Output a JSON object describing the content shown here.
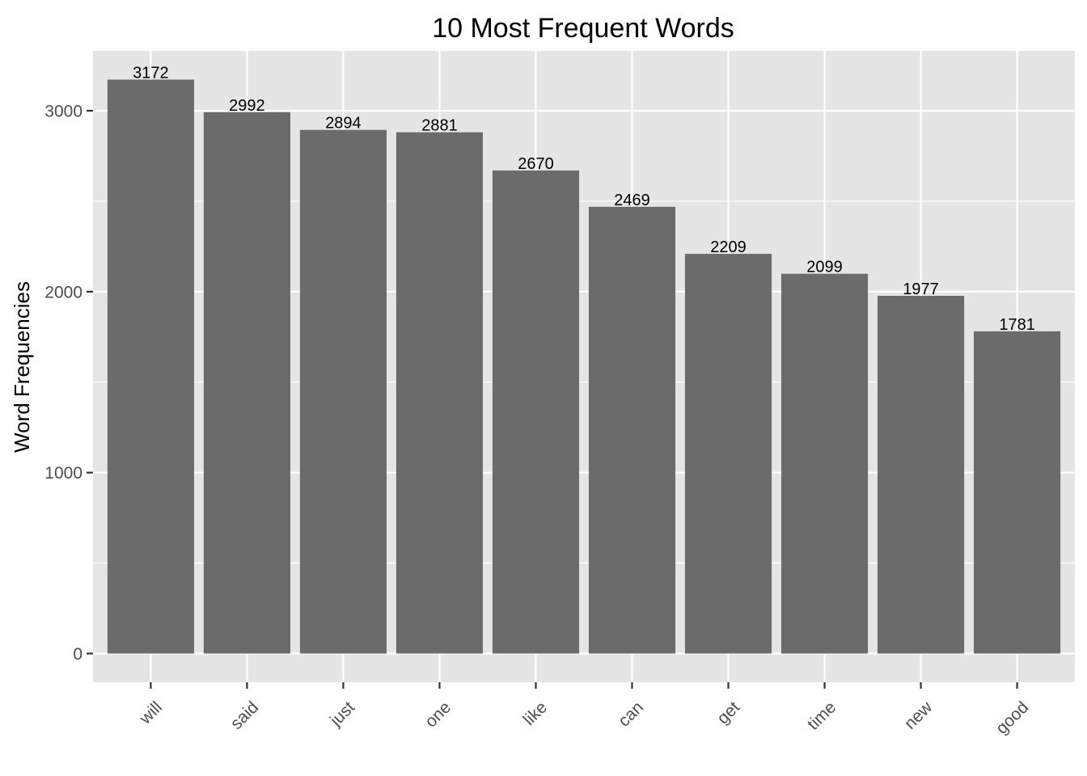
{
  "chart_data": {
    "type": "bar",
    "title": "10 Most Frequent Words",
    "xlabel": "",
    "ylabel": "Word Frequencies",
    "categories": [
      "will",
      "said",
      "just",
      "one",
      "like",
      "can",
      "get",
      "time",
      "new",
      "good"
    ],
    "values": [
      3172,
      2992,
      2894,
      2881,
      2670,
      2469,
      2209,
      2099,
      1977,
      1781
    ],
    "data_labels": [
      "3172",
      "2992",
      "2894",
      "2881",
      "2670",
      "2469",
      "2209",
      "2099",
      "1977",
      "1781"
    ],
    "yticks": [
      0,
      1000,
      2000,
      3000
    ],
    "ytick_labels": [
      "0",
      "1000",
      "2000",
      "3000"
    ],
    "ylim": [
      -158.6,
      3330.6
    ],
    "grid": true,
    "colors": {
      "bar": "#6b6b6b",
      "panel": "#e5e5e5",
      "grid": "#ffffff",
      "tick": "#333333"
    }
  }
}
